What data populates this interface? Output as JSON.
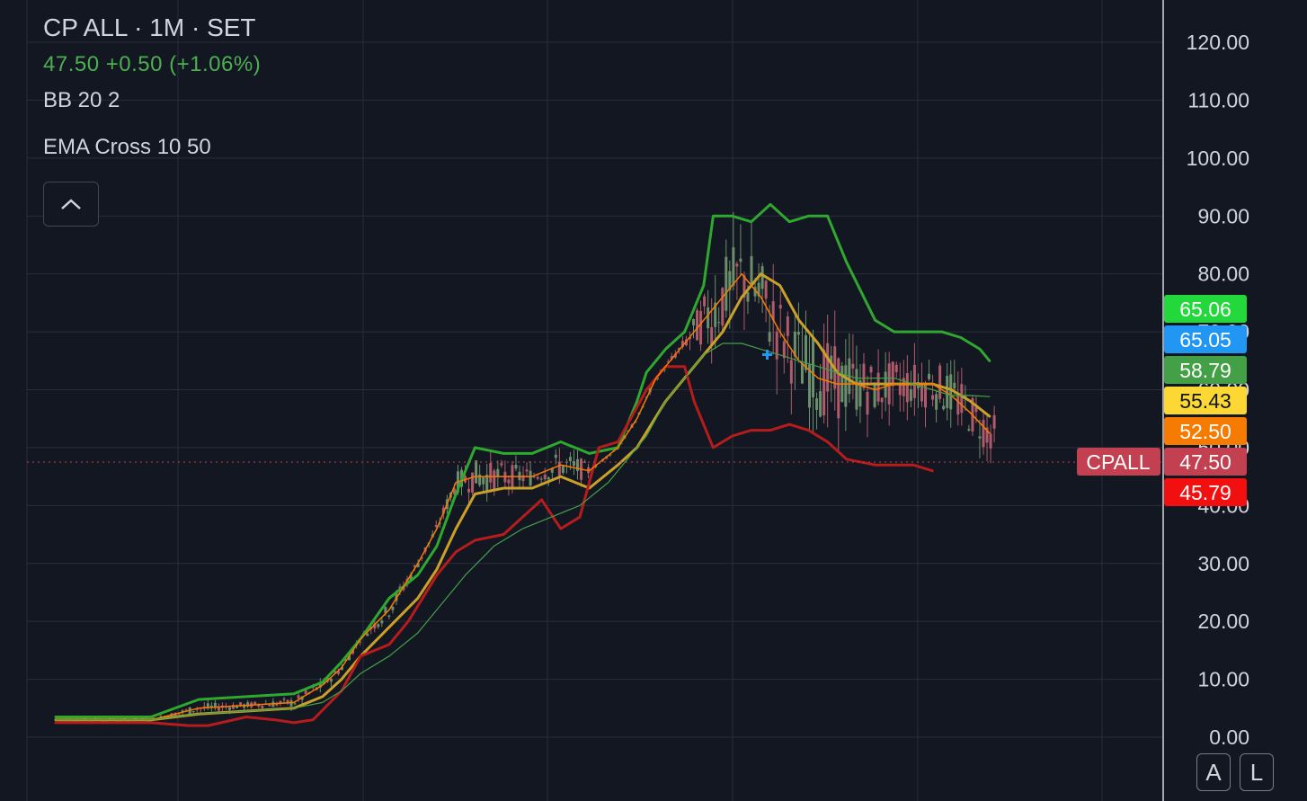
{
  "legend": {
    "title": "CP ALL · 1M · SET",
    "price": "47.50",
    "change": "+0.50",
    "change_pct": "(+1.06%)",
    "indicator1": "BB 20 2",
    "indicator2": "EMA Cross 10 50"
  },
  "axis_buttons": {
    "auto": "A",
    "log": "L"
  },
  "colors": {
    "background": "#131722",
    "grid": "#2a2e39",
    "bb_upper": "#2ea82e",
    "bb_lower": "#b71c1c",
    "bb_basis": "#c9a028",
    "ema_fast": "#f57c00",
    "ema_slow": "#43a047",
    "candle_up": "#6b8f6b",
    "candle_down": "#b05a6a"
  },
  "chart_data": {
    "type": "candlestick",
    "symbol": "CPALL",
    "exchange": "SET",
    "interval": "1M",
    "ylim": [
      0,
      120
    ],
    "y_ticks": [
      "120.00",
      "110.00",
      "100.00",
      "90.00",
      "80.00",
      "70.00",
      "60.00",
      "50.00",
      "40.00",
      "30.00",
      "20.00",
      "10.00",
      "0.00"
    ],
    "last_price": 47.5,
    "price_labels": [
      {
        "value": "65.06",
        "color": "#22d83b"
      },
      {
        "value": "65.05",
        "color": "#2196f3"
      },
      {
        "value": "58.79",
        "color": "#43a047"
      },
      {
        "value": "55.43",
        "color": "#fdd835"
      },
      {
        "value": "52.50",
        "color": "#f57c00"
      },
      {
        "value": "47.50",
        "color": "#c2404f",
        "tag": "CPALL"
      },
      {
        "value": "45.79",
        "color": "#f20f0f"
      }
    ],
    "series": [
      {
        "name": "BB Upper",
        "color": "#2ea82e",
        "width": 3,
        "points": [
          [
            0,
            3.5
          ],
          [
            0.05,
            3.5
          ],
          [
            0.1,
            3.5
          ],
          [
            0.15,
            6.5
          ],
          [
            0.2,
            7
          ],
          [
            0.25,
            7.5
          ],
          [
            0.28,
            9.5
          ],
          [
            0.3,
            13
          ],
          [
            0.32,
            17
          ],
          [
            0.35,
            24
          ],
          [
            0.38,
            28
          ],
          [
            0.4,
            33
          ],
          [
            0.42,
            42
          ],
          [
            0.44,
            50
          ],
          [
            0.47,
            49
          ],
          [
            0.5,
            49
          ],
          [
            0.53,
            51
          ],
          [
            0.56,
            49
          ],
          [
            0.59,
            50
          ],
          [
            0.61,
            58
          ],
          [
            0.62,
            63
          ],
          [
            0.64,
            67
          ],
          [
            0.66,
            70
          ],
          [
            0.68,
            78
          ],
          [
            0.69,
            90
          ],
          [
            0.71,
            90
          ],
          [
            0.73,
            89
          ],
          [
            0.75,
            92
          ],
          [
            0.77,
            89
          ],
          [
            0.79,
            90
          ],
          [
            0.81,
            90
          ],
          [
            0.83,
            82
          ],
          [
            0.86,
            72
          ],
          [
            0.88,
            70
          ],
          [
            0.9,
            70
          ],
          [
            0.93,
            70
          ],
          [
            0.95,
            69
          ],
          [
            0.97,
            67
          ],
          [
            0.98,
            65
          ]
        ]
      },
      {
        "name": "BB Basis",
        "color": "#c9a028",
        "width": 3,
        "points": [
          [
            0,
            3
          ],
          [
            0.1,
            3
          ],
          [
            0.15,
            4
          ],
          [
            0.2,
            4.5
          ],
          [
            0.25,
            5
          ],
          [
            0.28,
            7
          ],
          [
            0.3,
            10
          ],
          [
            0.32,
            14
          ],
          [
            0.35,
            19
          ],
          [
            0.38,
            24
          ],
          [
            0.4,
            29
          ],
          [
            0.42,
            36
          ],
          [
            0.44,
            42
          ],
          [
            0.47,
            43
          ],
          [
            0.5,
            43
          ],
          [
            0.53,
            45
          ],
          [
            0.56,
            43
          ],
          [
            0.59,
            47
          ],
          [
            0.61,
            50
          ],
          [
            0.64,
            58
          ],
          [
            0.66,
            62
          ],
          [
            0.68,
            66
          ],
          [
            0.7,
            70
          ],
          [
            0.72,
            76
          ],
          [
            0.74,
            80
          ],
          [
            0.76,
            78
          ],
          [
            0.78,
            72
          ],
          [
            0.8,
            68
          ],
          [
            0.82,
            63
          ],
          [
            0.84,
            61
          ],
          [
            0.86,
            61
          ],
          [
            0.88,
            61
          ],
          [
            0.9,
            61
          ],
          [
            0.92,
            61
          ],
          [
            0.94,
            60
          ],
          [
            0.96,
            58
          ],
          [
            0.98,
            55.4
          ]
        ]
      },
      {
        "name": "BB Lower",
        "color": "#b71c1c",
        "width": 3,
        "points": [
          [
            0,
            2.5
          ],
          [
            0.1,
            2.5
          ],
          [
            0.14,
            2
          ],
          [
            0.16,
            2
          ],
          [
            0.2,
            3.5
          ],
          [
            0.23,
            3
          ],
          [
            0.25,
            2.5
          ],
          [
            0.27,
            3
          ],
          [
            0.3,
            8
          ],
          [
            0.32,
            14
          ],
          [
            0.35,
            16
          ],
          [
            0.37,
            20
          ],
          [
            0.4,
            28
          ],
          [
            0.42,
            32
          ],
          [
            0.44,
            34
          ],
          [
            0.47,
            35
          ],
          [
            0.49,
            38
          ],
          [
            0.51,
            41
          ],
          [
            0.53,
            36
          ],
          [
            0.55,
            38
          ],
          [
            0.57,
            50
          ],
          [
            0.59,
            51
          ],
          [
            0.61,
            57
          ],
          [
            0.62,
            60
          ],
          [
            0.64,
            64
          ],
          [
            0.66,
            64
          ],
          [
            0.67,
            58
          ],
          [
            0.69,
            50
          ],
          [
            0.71,
            52
          ],
          [
            0.73,
            53
          ],
          [
            0.75,
            53
          ],
          [
            0.77,
            54
          ],
          [
            0.79,
            53
          ],
          [
            0.81,
            51
          ],
          [
            0.83,
            48
          ],
          [
            0.86,
            47
          ],
          [
            0.88,
            47
          ],
          [
            0.9,
            47
          ],
          [
            0.92,
            46
          ]
        ]
      },
      {
        "name": "EMA 10",
        "color": "#f57c00",
        "width": 1.5,
        "points": [
          [
            0,
            3
          ],
          [
            0.1,
            3
          ],
          [
            0.15,
            5
          ],
          [
            0.2,
            5.5
          ],
          [
            0.25,
            6
          ],
          [
            0.28,
            9
          ],
          [
            0.3,
            12
          ],
          [
            0.32,
            17
          ],
          [
            0.35,
            22
          ],
          [
            0.38,
            30
          ],
          [
            0.4,
            36
          ],
          [
            0.42,
            44
          ],
          [
            0.44,
            45
          ],
          [
            0.47,
            45
          ],
          [
            0.5,
            45
          ],
          [
            0.53,
            47
          ],
          [
            0.56,
            46
          ],
          [
            0.59,
            50
          ],
          [
            0.61,
            55
          ],
          [
            0.63,
            62
          ],
          [
            0.65,
            66
          ],
          [
            0.68,
            72
          ],
          [
            0.7,
            76
          ],
          [
            0.72,
            80
          ],
          [
            0.74,
            76
          ],
          [
            0.76,
            70
          ],
          [
            0.78,
            65
          ],
          [
            0.8,
            62
          ],
          [
            0.82,
            61
          ],
          [
            0.84,
            61
          ],
          [
            0.86,
            60
          ],
          [
            0.88,
            61
          ],
          [
            0.9,
            61
          ],
          [
            0.92,
            61
          ],
          [
            0.94,
            59
          ],
          [
            0.96,
            56
          ],
          [
            0.98,
            52.5
          ]
        ]
      },
      {
        "name": "EMA 50",
        "color": "#43a047",
        "width": 1.2,
        "points": [
          [
            0,
            3
          ],
          [
            0.1,
            3
          ],
          [
            0.15,
            4
          ],
          [
            0.2,
            4.5
          ],
          [
            0.25,
            5
          ],
          [
            0.28,
            6
          ],
          [
            0.3,
            8
          ],
          [
            0.32,
            11
          ],
          [
            0.35,
            14
          ],
          [
            0.38,
            18
          ],
          [
            0.4,
            22
          ],
          [
            0.43,
            28
          ],
          [
            0.46,
            33
          ],
          [
            0.49,
            36
          ],
          [
            0.52,
            38
          ],
          [
            0.55,
            40
          ],
          [
            0.58,
            44
          ],
          [
            0.6,
            48
          ],
          [
            0.62,
            52
          ],
          [
            0.64,
            58
          ],
          [
            0.66,
            62
          ],
          [
            0.68,
            66
          ],
          [
            0.7,
            68
          ],
          [
            0.72,
            68
          ],
          [
            0.74,
            67
          ],
          [
            0.76,
            66
          ],
          [
            0.78,
            65
          ],
          [
            0.8,
            64
          ],
          [
            0.82,
            63
          ],
          [
            0.84,
            62
          ],
          [
            0.86,
            62
          ],
          [
            0.88,
            62
          ],
          [
            0.9,
            61
          ],
          [
            0.92,
            60
          ],
          [
            0.94,
            59
          ],
          [
            0.96,
            59
          ],
          [
            0.98,
            58.8
          ]
        ]
      }
    ]
  }
}
